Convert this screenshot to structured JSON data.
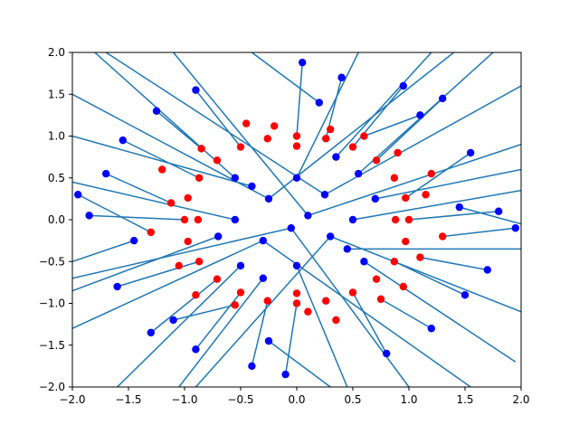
{
  "chart_data": {
    "type": "scatter",
    "title": "",
    "xlabel": "",
    "ylabel": "",
    "xlim": [
      -2.0,
      2.0
    ],
    "ylim": [
      -2.0,
      2.0
    ],
    "grid": false,
    "x_ticks": [
      "−2.0",
      "−1.5",
      "−1.0",
      "−0.5",
      "0.0",
      "0.5",
      "1.0",
      "1.5",
      "2.0"
    ],
    "y_ticks": [
      "−2.0",
      "−1.5",
      "−1.0",
      "−0.5",
      "0.0",
      "0.5",
      "1.0",
      "1.5",
      "2.0"
    ],
    "colors": {
      "segments": "#1f77b4",
      "inner_points": "#ff0000",
      "outer_points": "#0000ff"
    },
    "series": [
      {
        "points": [
          [
            0.0,
            1.0
          ],
          [
            0.26,
            0.97
          ],
          [
            0.5,
            0.87
          ],
          [
            0.71,
            0.71
          ],
          [
            0.87,
            0.5
          ],
          [
            0.97,
            0.26
          ],
          [
            1.0,
            0.0
          ],
          [
            0.97,
            -0.26
          ],
          [
            0.87,
            -0.5
          ],
          [
            0.71,
            -0.71
          ],
          [
            0.5,
            -0.87
          ],
          [
            0.26,
            -0.97
          ],
          [
            0.0,
            -1.0
          ],
          [
            -0.26,
            -0.97
          ],
          [
            -0.5,
            -0.87
          ],
          [
            -0.71,
            -0.71
          ],
          [
            -0.87,
            -0.5
          ],
          [
            -0.97,
            -0.26
          ],
          [
            -1.0,
            0.0
          ],
          [
            -0.97,
            0.26
          ],
          [
            -0.87,
            0.5
          ],
          [
            -0.71,
            0.71
          ],
          [
            -0.5,
            0.87
          ],
          [
            -0.26,
            0.97
          ],
          [
            0.3,
            1.08
          ],
          [
            0.9,
            0.8
          ],
          [
            1.15,
            0.3
          ],
          [
            1.1,
            -0.45
          ],
          [
            0.75,
            -0.95
          ],
          [
            0.1,
            -1.1
          ],
          [
            -0.55,
            -1.02
          ],
          [
            -1.05,
            -0.55
          ],
          [
            -1.12,
            0.2
          ],
          [
            -0.85,
            0.85
          ],
          [
            -0.2,
            1.12
          ],
          [
            0.6,
            1.0
          ],
          [
            1.3,
            -0.2
          ],
          [
            0.35,
            -1.2
          ],
          [
            -1.3,
            -0.15
          ],
          [
            -0.45,
            1.15
          ],
          [
            1.2,
            0.55
          ],
          [
            -1.2,
            0.6
          ],
          [
            0.95,
            -0.8
          ],
          [
            -0.9,
            -0.9
          ],
          [
            0.0,
            0.88
          ],
          [
            0.0,
            -0.88
          ],
          [
            0.88,
            0.0
          ],
          [
            -0.88,
            0.0
          ]
        ]
      },
      {
        "points": [
          [
            0.95,
            1.6
          ],
          [
            1.55,
            0.8
          ],
          [
            1.8,
            0.1
          ],
          [
            1.5,
            -0.9
          ],
          [
            0.8,
            -1.6
          ],
          [
            -0.1,
            -1.85
          ],
          [
            -0.9,
            -1.55
          ],
          [
            -1.6,
            -0.8
          ],
          [
            -1.85,
            0.05
          ],
          [
            -1.55,
            0.95
          ],
          [
            -0.9,
            1.55
          ],
          [
            0.05,
            1.88
          ],
          [
            0.25,
            0.3
          ],
          [
            0.3,
            -0.2
          ],
          [
            -0.25,
            0.25
          ],
          [
            -0.3,
            -0.25
          ],
          [
            0.1,
            0.05
          ],
          [
            -0.05,
            -0.1
          ],
          [
            0.55,
            0.55
          ],
          [
            0.6,
            -0.5
          ],
          [
            -0.55,
            0.5
          ],
          [
            -0.5,
            -0.55
          ],
          [
            0.0,
            0.5
          ],
          [
            0.0,
            -0.55
          ],
          [
            0.5,
            0.0
          ],
          [
            -0.55,
            0.0
          ],
          [
            1.3,
            1.45
          ],
          [
            1.7,
            -0.6
          ],
          [
            -1.3,
            -1.35
          ],
          [
            -1.7,
            0.55
          ],
          [
            0.4,
            1.7
          ],
          [
            1.95,
            -0.1
          ],
          [
            -0.4,
            -1.75
          ],
          [
            -1.95,
            0.3
          ],
          [
            1.45,
            0.15
          ],
          [
            -1.45,
            -0.25
          ],
          [
            0.2,
            1.4
          ],
          [
            -0.25,
            -1.45
          ],
          [
            0.7,
            0.25
          ],
          [
            -0.7,
            -0.2
          ],
          [
            0.35,
            0.75
          ],
          [
            -0.3,
            -0.7
          ],
          [
            1.1,
            1.25
          ],
          [
            -1.1,
            -1.2
          ],
          [
            1.2,
            -1.3
          ],
          [
            -1.25,
            1.3
          ],
          [
            0.45,
            -0.35
          ],
          [
            -0.4,
            0.4
          ]
        ]
      }
    ],
    "segments": [
      [
        [
          0.95,
          1.6
        ],
        [
          0.5,
          0.87
        ]
      ],
      [
        [
          1.55,
          0.8
        ],
        [
          0.97,
          0.26
        ]
      ],
      [
        [
          1.8,
          0.1
        ],
        [
          1.0,
          0.0
        ]
      ],
      [
        [
          1.5,
          -0.9
        ],
        [
          0.87,
          -0.5
        ]
      ],
      [
        [
          0.8,
          -1.6
        ],
        [
          0.5,
          -0.87
        ]
      ],
      [
        [
          -0.1,
          -1.85
        ],
        [
          0.0,
          -1.0
        ]
      ],
      [
        [
          -0.9,
          -1.55
        ],
        [
          -0.5,
          -0.87
        ]
      ],
      [
        [
          -1.6,
          -0.8
        ],
        [
          -0.87,
          -0.5
        ]
      ],
      [
        [
          -1.85,
          0.05
        ],
        [
          -1.0,
          0.0
        ]
      ],
      [
        [
          -1.55,
          0.95
        ],
        [
          -0.87,
          0.5
        ]
      ],
      [
        [
          -0.9,
          1.55
        ],
        [
          -0.5,
          0.87
        ]
      ],
      [
        [
          0.05,
          1.88
        ],
        [
          0.0,
          1.0
        ]
      ],
      [
        [
          0.25,
          0.3
        ],
        [
          2.0,
          1.6
        ]
      ],
      [
        [
          0.3,
          -0.2
        ],
        [
          2.0,
          -1.1
        ]
      ],
      [
        [
          -0.25,
          0.25
        ],
        [
          -2.0,
          1.5
        ]
      ],
      [
        [
          -0.3,
          -0.25
        ],
        [
          -2.0,
          -1.3
        ]
      ],
      [
        [
          0.1,
          0.05
        ],
        [
          2.0,
          0.9
        ]
      ],
      [
        [
          -0.05,
          -0.1
        ],
        [
          -2.0,
          -0.7
        ]
      ],
      [
        [
          0.55,
          0.55
        ],
        [
          1.75,
          2.0
        ]
      ],
      [
        [
          0.6,
          -0.5
        ],
        [
          1.95,
          -1.7
        ]
      ],
      [
        [
          -0.55,
          0.5
        ],
        [
          -1.8,
          2.0
        ]
      ],
      [
        [
          -0.5,
          -0.55
        ],
        [
          -1.6,
          -2.0
        ]
      ],
      [
        [
          0.0,
          0.5
        ],
        [
          0.55,
          2.0
        ]
      ],
      [
        [
          0.0,
          -0.55
        ],
        [
          0.45,
          -2.0
        ]
      ],
      [
        [
          0.5,
          0.0
        ],
        [
          2.0,
          0.35
        ]
      ],
      [
        [
          -0.55,
          0.0
        ],
        [
          -2.0,
          0.45
        ]
      ],
      [
        [
          1.3,
          1.45
        ],
        [
          0.71,
          0.71
        ]
      ],
      [
        [
          1.7,
          -0.6
        ],
        [
          1.1,
          -0.45
        ]
      ],
      [
        [
          -1.3,
          -1.35
        ],
        [
          -0.71,
          -0.71
        ]
      ],
      [
        [
          -1.7,
          0.55
        ],
        [
          -1.12,
          0.2
        ]
      ],
      [
        [
          0.4,
          1.7
        ],
        [
          0.26,
          0.97
        ]
      ],
      [
        [
          1.95,
          -0.1
        ],
        [
          1.3,
          -0.2
        ]
      ],
      [
        [
          -0.4,
          -1.75
        ],
        [
          -0.26,
          -0.97
        ]
      ],
      [
        [
          -1.95,
          0.3
        ],
        [
          -1.3,
          -0.15
        ]
      ],
      [
        [
          1.45,
          0.15
        ],
        [
          2.0,
          -0.05
        ]
      ],
      [
        [
          -1.45,
          -0.25
        ],
        [
          -2.0,
          -0.5
        ]
      ],
      [
        [
          0.2,
          1.4
        ],
        [
          -0.4,
          2.0
        ]
      ],
      [
        [
          -0.25,
          -1.45
        ],
        [
          0.3,
          -2.0
        ]
      ],
      [
        [
          0.7,
          0.25
        ],
        [
          2.0,
          0.6
        ]
      ],
      [
        [
          -0.7,
          -0.2
        ],
        [
          -2.0,
          -0.85
        ]
      ],
      [
        [
          0.35,
          0.75
        ],
        [
          1.2,
          2.0
        ]
      ],
      [
        [
          -0.3,
          -0.7
        ],
        [
          -1.05,
          -2.0
        ]
      ],
      [
        [
          1.1,
          1.25
        ],
        [
          0.6,
          1.0
        ]
      ],
      [
        [
          -1.1,
          -1.2
        ],
        [
          -0.55,
          -1.02
        ]
      ],
      [
        [
          1.2,
          -1.3
        ],
        [
          0.75,
          -0.95
        ]
      ],
      [
        [
          -1.25,
          1.3
        ],
        [
          -0.85,
          0.85
        ]
      ],
      [
        [
          0.45,
          -0.35
        ],
        [
          2.0,
          -0.35
        ]
      ],
      [
        [
          -0.4,
          0.4
        ],
        [
          -2.0,
          1.0
        ]
      ],
      [
        [
          0.25,
          0.3
        ],
        [
          -1.7,
          2.0
        ]
      ],
      [
        [
          0.3,
          -0.2
        ],
        [
          -0.9,
          -2.0
        ]
      ],
      [
        [
          -0.25,
          0.25
        ],
        [
          1.4,
          2.0
        ]
      ],
      [
        [
          -0.3,
          -0.25
        ],
        [
          1.55,
          -2.0
        ]
      ],
      [
        [
          0.1,
          0.05
        ],
        [
          -1.1,
          2.0
        ]
      ],
      [
        [
          -0.05,
          -0.1
        ],
        [
          1.0,
          -2.0
        ]
      ]
    ]
  }
}
